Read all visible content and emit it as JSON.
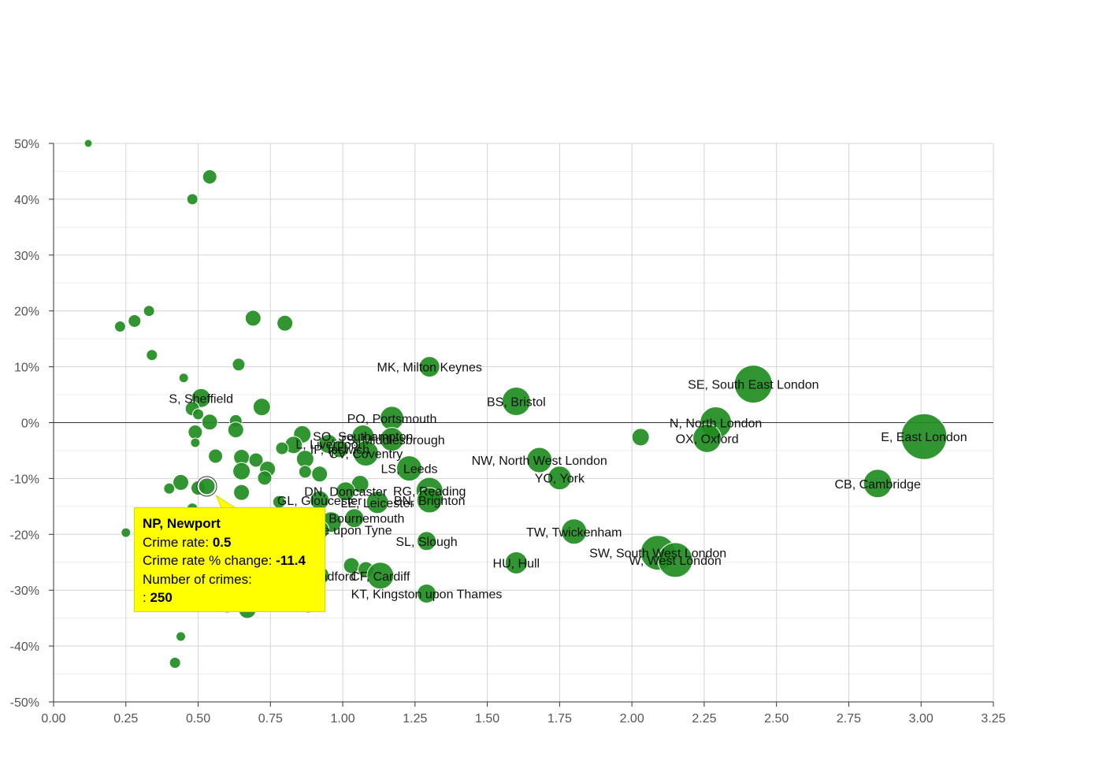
{
  "chart_data": {
    "type": "scatter",
    "xlim": [
      0,
      3.25
    ],
    "ylim": [
      -50,
      50
    ],
    "x_ticks": [
      "0.00",
      "0.25",
      "0.50",
      "0.75",
      "1.00",
      "1.25",
      "1.50",
      "1.75",
      "2.00",
      "2.25",
      "2.50",
      "2.75",
      "3.00",
      "3.25"
    ],
    "y_ticks": [
      "50%",
      "40%",
      "30%",
      "20%",
      "10%",
      "0%",
      "-10%",
      "-20%",
      "-30%",
      "-40%",
      "-50%"
    ],
    "grid": true,
    "bubble_color": "#1f8c1f",
    "points": [
      {
        "x": 0.12,
        "y": 50,
        "r": 5
      },
      {
        "x": 0.54,
        "y": 44,
        "r": 9
      },
      {
        "x": 0.48,
        "y": 40,
        "r": 7
      },
      {
        "x": 0.23,
        "y": 17.2,
        "r": 7
      },
      {
        "x": 0.28,
        "y": 18.2,
        "r": 8
      },
      {
        "x": 0.33,
        "y": 20,
        "r": 7
      },
      {
        "x": 0.69,
        "y": 18.7,
        "r": 10
      },
      {
        "x": 0.8,
        "y": 17.8,
        "r": 10
      },
      {
        "x": 0.34,
        "y": 12.1,
        "r": 7
      },
      {
        "x": 0.64,
        "y": 10.4,
        "r": 8
      },
      {
        "x": 0.45,
        "y": 8,
        "r": 6
      },
      {
        "x": 1.3,
        "y": 10,
        "r": 13,
        "label": "MK, Milton Keynes"
      },
      {
        "x": 0.51,
        "y": 4.4,
        "r": 12,
        "label": "S, Sheffield"
      },
      {
        "x": 0.48,
        "y": 2.5,
        "r": 9
      },
      {
        "x": 0.5,
        "y": 1.5,
        "r": 7
      },
      {
        "x": 0.72,
        "y": 2.8,
        "r": 11
      },
      {
        "x": 0.54,
        "y": 0.1,
        "r": 10
      },
      {
        "x": 0.63,
        "y": 0.3,
        "r": 8
      },
      {
        "x": 0.63,
        "y": -1.3,
        "r": 10
      },
      {
        "x": 0.49,
        "y": -1.7,
        "r": 9
      },
      {
        "x": 0.49,
        "y": -3.6,
        "r": 6
      },
      {
        "x": 0.56,
        "y": -6,
        "r": 9
      },
      {
        "x": 1.6,
        "y": 3.8,
        "r": 18,
        "label": "BS, Bristol"
      },
      {
        "x": 1.17,
        "y": 0.8,
        "r": 15,
        "label": "PO, Portsmouth"
      },
      {
        "x": 2.42,
        "y": 6.9,
        "r": 24,
        "label": "SE, South East London"
      },
      {
        "x": 2.29,
        "y": 0,
        "r": 20,
        "label": "N, North London"
      },
      {
        "x": 2.26,
        "y": -2.8,
        "r": 18,
        "label": "OX, Oxford"
      },
      {
        "x": 2.03,
        "y": -2.6,
        "r": 11
      },
      {
        "x": 3.01,
        "y": -2.5,
        "r": 29,
        "label": "E, East London"
      },
      {
        "x": 2.85,
        "y": -10.9,
        "r": 18,
        "label": "CB, Cambridge"
      },
      {
        "x": 1.17,
        "y": -3,
        "r": 15,
        "label": "TS, Middlesbrough"
      },
      {
        "x": 1.07,
        "y": -2.4,
        "r": 14,
        "label": "SO, Southampton"
      },
      {
        "x": 0.86,
        "y": -2.1,
        "r": 11
      },
      {
        "x": 0.83,
        "y": -4,
        "r": 11
      },
      {
        "x": 0.79,
        "y": -4.6,
        "r": 8
      },
      {
        "x": 0.95,
        "y": -3.8,
        "r": 12,
        "label": "L, Liverpool"
      },
      {
        "x": 0.99,
        "y": -4.7,
        "r": 11,
        "label": "IP, Ipswich"
      },
      {
        "x": 1.08,
        "y": -5.5,
        "r": 16,
        "label": "CV, Coventry"
      },
      {
        "x": 0.65,
        "y": -6.2,
        "r": 10
      },
      {
        "x": 0.7,
        "y": -6.7,
        "r": 9
      },
      {
        "x": 0.87,
        "y": -6.5,
        "r": 11
      },
      {
        "x": 0.74,
        "y": -8.3,
        "r": 10
      },
      {
        "x": 0.65,
        "y": -8.7,
        "r": 11
      },
      {
        "x": 0.73,
        "y": -9.9,
        "r": 9
      },
      {
        "x": 0.87,
        "y": -8.8,
        "r": 8
      },
      {
        "x": 0.92,
        "y": -9.2,
        "r": 10
      },
      {
        "x": 1.23,
        "y": -8.2,
        "r": 16,
        "label": "LS, Leeds"
      },
      {
        "x": 1.68,
        "y": -6.7,
        "r": 16,
        "label": "NW, North West London"
      },
      {
        "x": 1.75,
        "y": -9.9,
        "r": 15,
        "label": "YO, York"
      },
      {
        "x": 0.44,
        "y": -10.7,
        "r": 10
      },
      {
        "x": 0.4,
        "y": -11.8,
        "r": 7
      },
      {
        "x": 0.5,
        "y": -11.7,
        "r": 9
      },
      {
        "x": 0.53,
        "y": -11.4,
        "r": 11,
        "label": "NP, Newport",
        "highlight": true
      },
      {
        "x": 0.65,
        "y": -12.5,
        "r": 10
      },
      {
        "x": 1.06,
        "y": -11,
        "r": 11
      },
      {
        "x": 1.01,
        "y": -12.3,
        "r": 12,
        "label": "DN, Doncaster"
      },
      {
        "x": 1.3,
        "y": -12.2,
        "r": 17,
        "label": "RG, Reading"
      },
      {
        "x": 1.12,
        "y": -14.3,
        "r": 14,
        "label": "LE, Leicester"
      },
      {
        "x": 0.92,
        "y": -13.9,
        "r": 12,
        "label": "GL, Gloucester"
      },
      {
        "x": 1.3,
        "y": -13.9,
        "r": 16,
        "label": "BN, Brighton"
      },
      {
        "x": 0.78,
        "y": -14.2,
        "r": 8
      },
      {
        "x": 0.48,
        "y": -15.4,
        "r": 7
      },
      {
        "x": 1.04,
        "y": -17.1,
        "r": 12,
        "label": "BH, Bournemouth"
      },
      {
        "x": 0.96,
        "y": -17.8,
        "r": 13
      },
      {
        "x": 0.92,
        "y": -19.2,
        "r": 12,
        "label": "NE, Newcastle upon Tyne"
      },
      {
        "x": 0.25,
        "y": -19.7,
        "r": 6
      },
      {
        "x": 1.29,
        "y": -21.2,
        "r": 12,
        "label": "SL, Slough"
      },
      {
        "x": 1.8,
        "y": -19.5,
        "r": 16,
        "label": "TW, Twickenham"
      },
      {
        "x": 2.09,
        "y": -23.3,
        "r": 22,
        "label": "SW, South West London"
      },
      {
        "x": 2.15,
        "y": -24.6,
        "r": 22,
        "label": "W, West London"
      },
      {
        "x": 1.6,
        "y": -25.1,
        "r": 14,
        "label": "HU, Hull"
      },
      {
        "x": 1.03,
        "y": -25.6,
        "r": 10
      },
      {
        "x": 1.08,
        "y": -26.3,
        "r": 10
      },
      {
        "x": 1.13,
        "y": -27.4,
        "r": 17,
        "label": "CF, Cardiff"
      },
      {
        "x": 0.92,
        "y": -27.4,
        "r": 12,
        "label": "BD, Bradford"
      },
      {
        "x": 1.29,
        "y": -30.6,
        "r": 12,
        "label": "KT, Kingston upon Thames"
      },
      {
        "x": 0.6,
        "y": -32.8,
        "r": 9
      },
      {
        "x": 0.67,
        "y": -33.5,
        "r": 11
      },
      {
        "x": 0.88,
        "y": -32.8,
        "r": 9
      },
      {
        "x": 0.44,
        "y": -38.3,
        "r": 6
      },
      {
        "x": 0.42,
        "y": -43,
        "r": 7
      }
    ]
  },
  "tooltip": {
    "title": "NP, Newport",
    "crime_rate_label": "Crime rate:",
    "crime_rate_value": "0.5",
    "change_label": "Crime rate % change:",
    "change_value": "-11.4",
    "count_label": "Number of crimes:",
    "count_prefix": ":",
    "count_value": "250"
  }
}
